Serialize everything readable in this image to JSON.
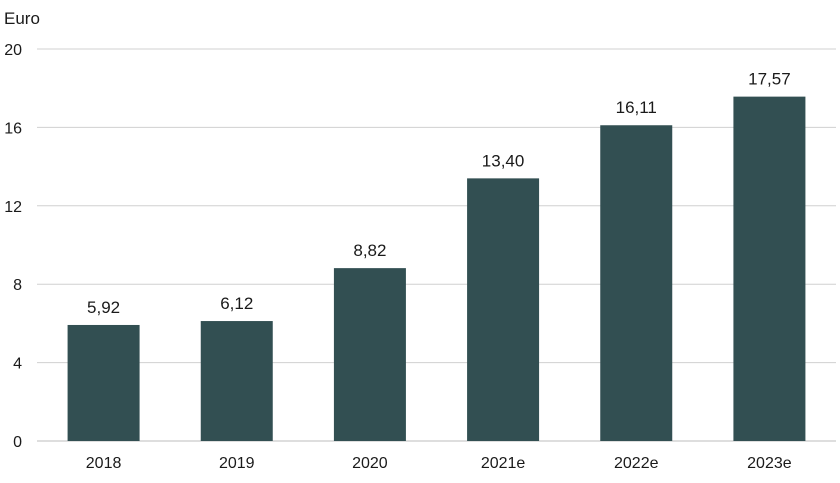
{
  "chart_data": {
    "type": "bar",
    "ylabel": "Euro",
    "categories": [
      "2018",
      "2019",
      "2020",
      "2021e",
      "2022e",
      "2023e"
    ],
    "values": [
      5.92,
      6.12,
      8.82,
      13.4,
      16.11,
      17.57
    ],
    "value_labels": [
      "5,92",
      "6,12",
      "8,82",
      "13,40",
      "16,11",
      "17,57"
    ],
    "ylim": [
      0,
      20
    ],
    "yticks": [
      0,
      4,
      8,
      12,
      16,
      20
    ],
    "ytick_labels": [
      "0",
      "4",
      "8",
      "12",
      "16",
      "20"
    ],
    "grid": true,
    "legend": "none",
    "colors": {
      "bar": "#324f52",
      "grid": "#d0d0d0",
      "baseline": "#bdbdbd"
    }
  }
}
